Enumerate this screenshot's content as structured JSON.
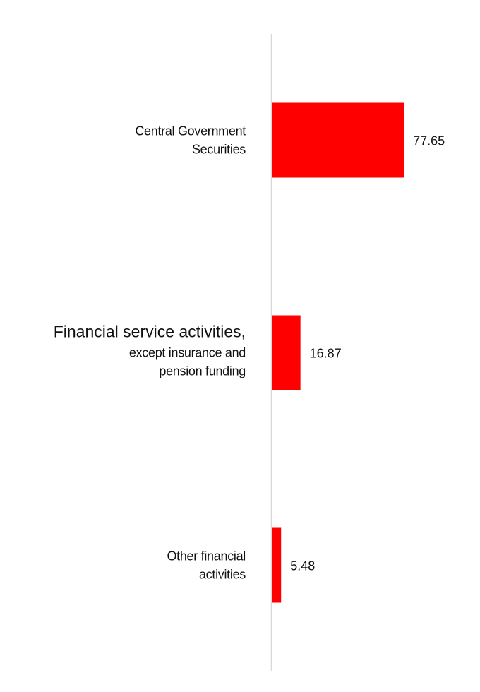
{
  "chart_data": {
    "type": "bar",
    "orientation": "horizontal",
    "categories": [
      [
        "Central Government",
        "Securities"
      ],
      [
        "Financial service activities,",
        "except insurance and",
        "pension funding"
      ],
      [
        "Other financial",
        "activities"
      ]
    ],
    "values": [
      77.65,
      16.87,
      5.48
    ],
    "value_labels": [
      "77.65",
      "16.87",
      "5.48"
    ],
    "xlim": [
      0,
      100
    ],
    "grid": false,
    "legend": "none",
    "bar_color": "#ff0000",
    "axis_color": "#d9d9d9"
  }
}
